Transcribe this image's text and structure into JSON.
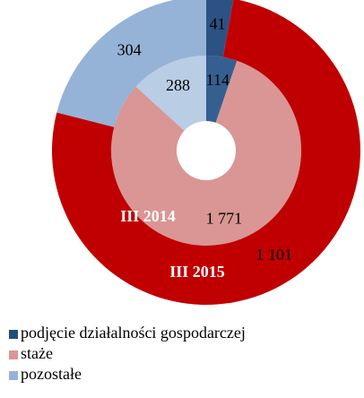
{
  "chart_data": {
    "type": "donut",
    "categories": [
      "podjęcie działalności gospodarczej",
      "staże",
      "pozostałe"
    ],
    "legend_colors": [
      "#1f4e79",
      "#d99694",
      "#95b3d7"
    ],
    "series": [
      {
        "name": "III 2014",
        "values": [
          114,
          1771,
          288
        ],
        "value_labels": [
          "114",
          "1 771",
          "288"
        ],
        "colors": [
          "#365f91",
          "#d99694",
          "#b9cde5"
        ]
      },
      {
        "name": "III 2015",
        "values": [
          41,
          1101,
          304
        ],
        "value_labels": [
          "41",
          "1 101",
          "304"
        ],
        "colors": [
          "#2c5283",
          "#c00000",
          "#95b3d7"
        ]
      }
    ]
  }
}
